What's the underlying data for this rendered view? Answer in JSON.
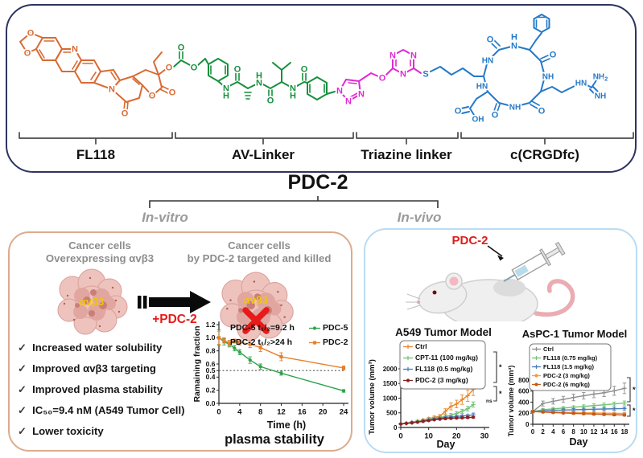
{
  "title": "PDC-2",
  "branches": {
    "left": "In-vitro",
    "right": "In-vivo"
  },
  "structure_panel": {
    "component_labels": [
      "FL118",
      "AV-Linker",
      "Triazine linker",
      "c(CRGDfc)"
    ],
    "colors": {
      "o": "#d96a32",
      "g": "#17903c",
      "m": "#e02ad4",
      "b": "#2579c8"
    },
    "atoms": [
      [
        "O",
        29,
        34,
        "o"
      ],
      [
        "O",
        25,
        59,
        "o"
      ],
      [
        "N",
        84,
        54,
        "o"
      ],
      [
        "N",
        130,
        104,
        "o"
      ],
      [
        "O",
        146,
        134,
        "o"
      ],
      [
        "O",
        180,
        112,
        "o"
      ],
      [
        "O",
        205,
        108,
        "o"
      ],
      [
        "O",
        201,
        77,
        "o"
      ],
      [
        "O",
        216,
        52,
        "g"
      ],
      [
        "O",
        232,
        77,
        "g"
      ],
      [
        "N",
        272,
        103,
        "g"
      ],
      [
        "H",
        272,
        112,
        "g"
      ],
      [
        "O",
        286,
        79,
        "g"
      ],
      [
        "N",
        313,
        96,
        "g"
      ],
      [
        "H",
        313,
        87,
        "g"
      ],
      [
        "O",
        327,
        118,
        "g"
      ],
      [
        "N",
        355,
        103,
        "g"
      ],
      [
        "H",
        355,
        112,
        "g"
      ],
      [
        "O",
        369,
        79,
        "g"
      ],
      [
        "N",
        413,
        106,
        "m"
      ],
      [
        "N",
        424,
        119,
        "m"
      ],
      [
        "N",
        440,
        110,
        "m"
      ],
      [
        "O",
        466,
        90,
        "m"
      ],
      [
        "N",
        479,
        62,
        "m"
      ],
      [
        "N",
        505,
        62,
        "m"
      ],
      [
        "N",
        492,
        85,
        "m"
      ],
      [
        "S",
        520,
        85,
        "b"
      ],
      [
        "HN",
        597,
        68,
        "b"
      ],
      [
        "O",
        600,
        42,
        "b"
      ],
      [
        "H",
        630,
        39,
        "b"
      ],
      [
        "N",
        630,
        50,
        "b"
      ],
      [
        "O",
        678,
        61,
        "b"
      ],
      [
        "NH",
        672,
        88,
        "b"
      ],
      [
        "HN",
        713,
        96,
        "b"
      ],
      [
        "NH2",
        737,
        88,
        "b"
      ],
      [
        "NH",
        737,
        112,
        "b"
      ],
      [
        "O",
        664,
        131,
        "b"
      ],
      [
        "NH",
        631,
        126,
        "b"
      ],
      [
        "HN",
        590,
        100,
        "b"
      ],
      [
        "O",
        606,
        136,
        "b"
      ],
      [
        "O",
        560,
        131,
        "b"
      ],
      [
        "OH",
        585,
        141,
        "b"
      ]
    ]
  },
  "invitro": {
    "left_caption": [
      "Cancer cells",
      "Overexpressing αvβ3"
    ],
    "right_caption": [
      "Cancer cells",
      "by PDC-2 targeted and killed"
    ],
    "cell_label": "αvβ3",
    "arrow_label": "+PDC-2",
    "check_mark": "✓",
    "checklist": [
      "Increased water solubility",
      "Improved αvβ3 targeting",
      "Improved plasma stability",
      "IC₅₀=9.4 nM (A549 Tumor Cell)",
      "Lower toxicity"
    ]
  },
  "invivo": {
    "injection_label": "PDC-2"
  },
  "chart_data": [
    {
      "id": "chart-plasma",
      "type": "line",
      "x": [
        0,
        1,
        2,
        3,
        4,
        6,
        8,
        12,
        24
      ],
      "series": [
        {
          "name": "PDC-5",
          "color": "#2da44a",
          "marker": "ci",
          "values": [
            1.0,
            0.94,
            0.9,
            0.84,
            0.78,
            0.66,
            0.56,
            0.46,
            0.19
          ],
          "err": [
            0.12,
            0.05,
            0.04,
            0.04,
            0.04,
            0.05,
            0.04,
            0.03,
            0.02
          ]
        },
        {
          "name": "PDC-2",
          "color": "#e8802d",
          "marker": "sq",
          "values": [
            1.0,
            0.96,
            0.92,
            0.95,
            0.93,
            0.9,
            0.85,
            0.71,
            0.54
          ],
          "err": [
            0.1,
            0.04,
            0.04,
            0.03,
            0.04,
            0.05,
            0.06,
            0.06,
            0.03
          ]
        }
      ],
      "annotations": [
        "PDC-5 t₁/₂=9.2 h",
        "PDC-2 t₁/₂>24 h"
      ],
      "refline": 0.5,
      "xlabel": "Time (h)",
      "ylabel": "Ramaining fraction",
      "caption": "plasma stability",
      "xticks": [
        0,
        4,
        8,
        12,
        16,
        20,
        24
      ],
      "yticks": [
        0,
        0.2,
        0.4,
        0.5,
        0.6,
        0.8,
        1,
        1.2
      ],
      "ylim": [
        0,
        1.2
      ],
      "legend_position": "top-right"
    },
    {
      "id": "chart-a549",
      "type": "line",
      "title": "A549 Tumor Model",
      "x": [
        0,
        2,
        4,
        6,
        8,
        10,
        12,
        14,
        16,
        18,
        20,
        22,
        24,
        26
      ],
      "series": [
        {
          "name": "Ctrl",
          "color": "#e8872e",
          "marker": "pl",
          "values": [
            120,
            150,
            185,
            215,
            255,
            300,
            345,
            385,
            550,
            720,
            800,
            950,
            1080,
            1300
          ],
          "err": [
            15,
            20,
            25,
            30,
            35,
            40,
            45,
            55,
            90,
            120,
            130,
            160,
            190,
            210
          ]
        },
        {
          "name": "CPT-11 (100 mg/kg)",
          "color": "#74c476",
          "marker": "pl",
          "values": [
            120,
            148,
            175,
            205,
            235,
            270,
            305,
            340,
            375,
            420,
            480,
            550,
            640,
            780
          ],
          "err": [
            15,
            20,
            25,
            28,
            30,
            35,
            40,
            45,
            50,
            55,
            60,
            70,
            80,
            90
          ]
        },
        {
          "name": "FL118 (0.5 mg/kg)",
          "color": "#4a7ebb",
          "marker": "pl",
          "values": [
            120,
            140,
            165,
            190,
            220,
            250,
            285,
            315,
            340,
            355,
            375,
            390,
            405,
            430
          ],
          "err": [
            10,
            12,
            15,
            18,
            20,
            22,
            25,
            25,
            28,
            28,
            30,
            30,
            32,
            60
          ]
        },
        {
          "name": "PDC-2 (3 mg/kg)",
          "color": "#8b2020",
          "marker": "ci",
          "values": [
            120,
            138,
            158,
            182,
            208,
            235,
            262,
            285,
            300,
            312,
            322,
            330,
            338,
            348
          ],
          "err": [
            10,
            10,
            12,
            14,
            15,
            16,
            18,
            18,
            20,
            20,
            22,
            22,
            24,
            26
          ]
        }
      ],
      "xlabel": "Day",
      "ylabel": "Tumor volume (mm³)",
      "xticks": [
        0,
        10,
        20,
        30
      ],
      "yticks": [
        0,
        500,
        1000,
        1500,
        2000
      ],
      "ylim": [
        0,
        2000
      ],
      "legend_position": "top-left",
      "sig": [
        "*",
        "*"
      ],
      "ns": "ns"
    },
    {
      "id": "chart-aspc1",
      "type": "line",
      "title": "AsPC-1 Tumor Model",
      "x": [
        0,
        2,
        4,
        6,
        8,
        10,
        12,
        14,
        16,
        18
      ],
      "series": [
        {
          "name": "Ctrl",
          "color": "#8f8f8f",
          "marker": "pl",
          "values": [
            230,
            375,
            415,
            450,
            485,
            515,
            545,
            570,
            605,
            650
          ],
          "err": [
            25,
            45,
            50,
            55,
            60,
            60,
            65,
            70,
            80,
            95
          ]
        },
        {
          "name": "FL118 (0.75 mg/kg)",
          "color": "#74c476",
          "marker": "pl",
          "values": [
            230,
            262,
            278,
            293,
            308,
            322,
            338,
            352,
            368,
            385
          ],
          "err": [
            20,
            22,
            24,
            25,
            26,
            28,
            30,
            32,
            34,
            36
          ]
        },
        {
          "name": "FL118 (1.5 mg/kg)",
          "color": "#4a7ebb",
          "marker": "pl",
          "values": [
            230,
            244,
            251,
            257,
            262,
            267,
            271,
            276,
            280,
            285
          ],
          "err": [
            18,
            18,
            20,
            20,
            22,
            22,
            24,
            24,
            26,
            26
          ]
        },
        {
          "name": "PDC-2 (3 mg/kg)",
          "color": "#f59d3d",
          "marker": "ci",
          "values": [
            230,
            226,
            221,
            217,
            213,
            209,
            205,
            201,
            198,
            195
          ],
          "err": [
            15,
            15,
            16,
            16,
            17,
            17,
            18,
            18,
            19,
            20
          ]
        },
        {
          "name": "PDC-2 (6 mg/kg)",
          "color": "#c35a1a",
          "marker": "ci",
          "values": [
            230,
            221,
            212,
            204,
            197,
            190,
            184,
            178,
            172,
            167
          ],
          "err": [
            14,
            14,
            15,
            15,
            16,
            16,
            17,
            17,
            18,
            18
          ]
        }
      ],
      "xlabel": "Day",
      "ylabel": "Tumor volume (mm³)",
      "xticks": [
        0,
        2,
        4,
        6,
        8,
        10,
        12,
        14,
        16,
        18
      ],
      "yticks": [
        0,
        200,
        400,
        600,
        800
      ],
      "ylim": [
        0,
        800
      ],
      "legend_position": "top-left",
      "sig": [
        "**",
        "*"
      ]
    }
  ]
}
